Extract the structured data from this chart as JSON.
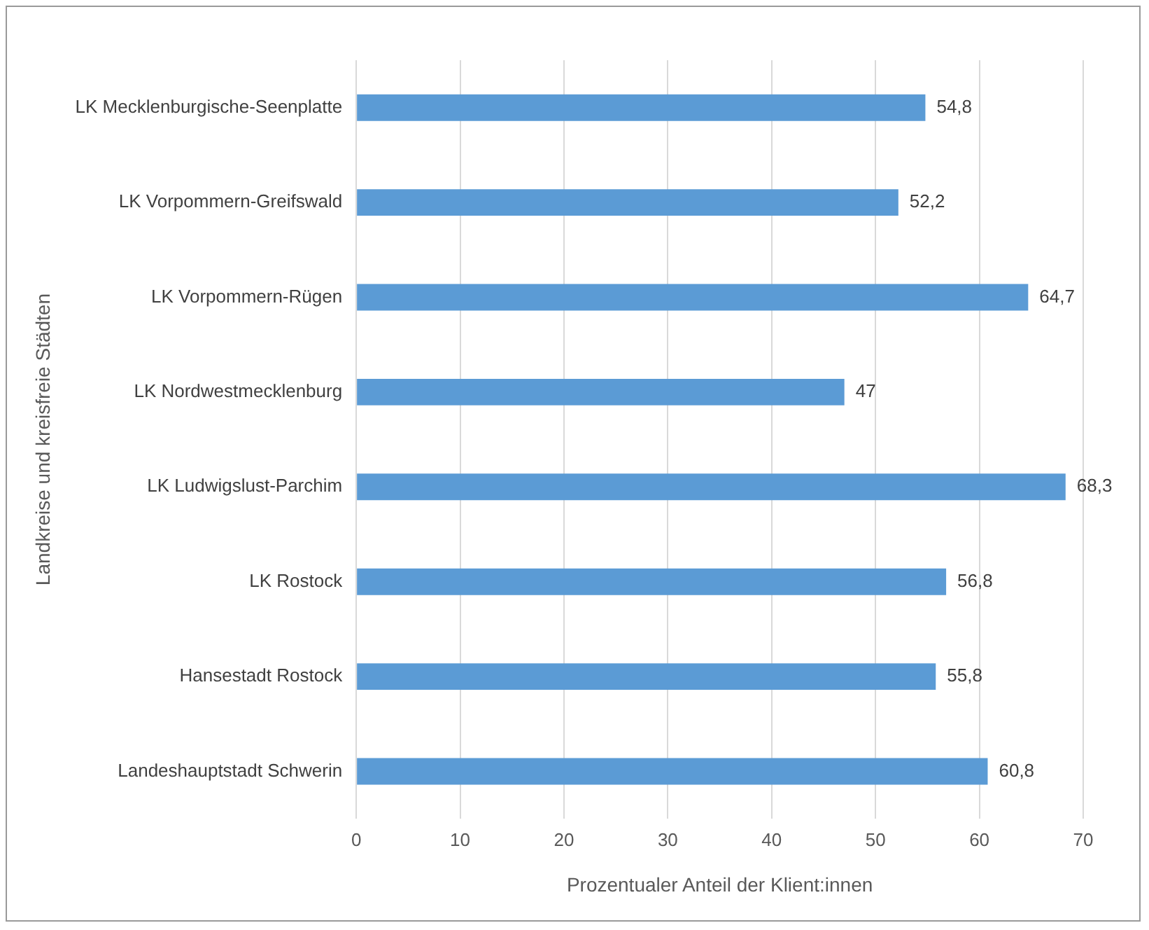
{
  "chart_data": {
    "type": "bar",
    "orientation": "horizontal",
    "xlabel": "Prozentualer Anteil der Klient:innen",
    "ylabel": "Landkreise und kreisfreie Städten",
    "categories": [
      "LK Mecklenburgische-Seenplatte",
      "LK Vorpommern-Greifswald",
      "LK Vorpommern-Rügen",
      "LK Nordwestmecklenburg",
      "LK Ludwigslust-Parchim",
      "LK Rostock",
      "Hansestadt Rostock",
      "Landeshauptstadt Schwerin"
    ],
    "values": [
      54.8,
      52.2,
      64.7,
      47,
      68.3,
      56.8,
      55.8,
      60.8
    ],
    "value_labels": [
      "54,8",
      "52,2",
      "64,7",
      "47",
      "68,3",
      "56,8",
      "55,8",
      "60,8"
    ],
    "color": "#5b9bd5",
    "xlim": [
      0,
      70
    ],
    "xticks": [
      0,
      10,
      20,
      30,
      40,
      50,
      60,
      70
    ],
    "grid": "x",
    "legend": false
  }
}
